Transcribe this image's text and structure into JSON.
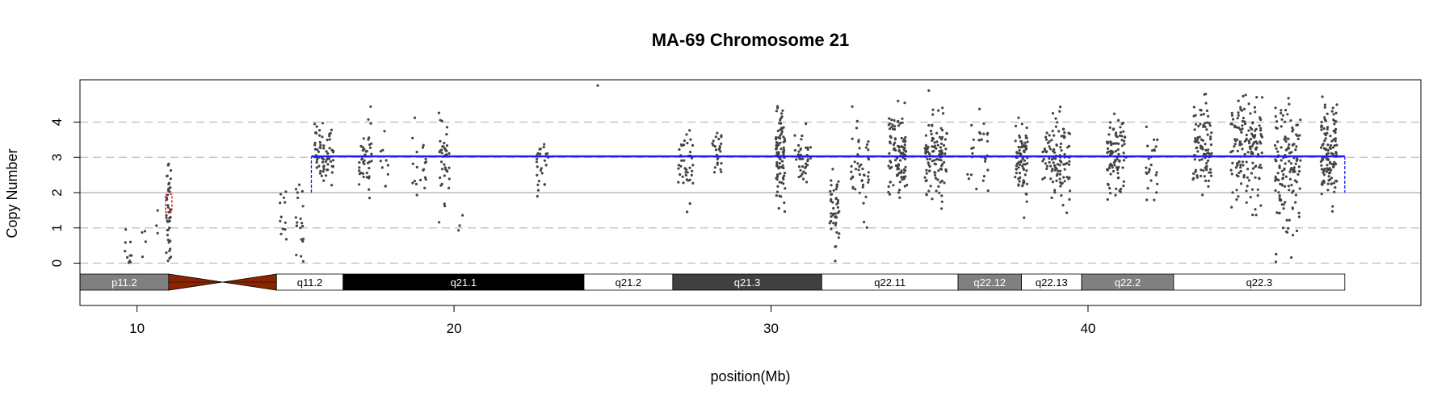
{
  "chart_data": {
    "type": "scatter",
    "title": "MA-69  Chromosome 21",
    "xlabel": "position(Mb)",
    "ylabel": "Copy Number",
    "xlim": [
      8.2,
      50.5
    ],
    "ylim": [
      -1.2,
      5.2
    ],
    "x_ticks": [
      10,
      20,
      30,
      40
    ],
    "y_ticks": [
      0,
      1,
      2,
      3,
      4
    ],
    "grid": {
      "dashed_y": [
        0,
        1,
        3,
        4
      ],
      "solid_y": [
        2
      ]
    },
    "colors": {
      "points": "#444444",
      "segment": "#1a1aff",
      "highlight": "#cc2222",
      "centromere": "#8b2500",
      "grid": "#bbbbbb"
    },
    "cytobands": [
      {
        "name": "p11.2",
        "start": 8.2,
        "end": 11.0,
        "stain": "gpos50"
      },
      {
        "name": "",
        "start": 11.0,
        "end": 14.4,
        "stain": "acen"
      },
      {
        "name": "q11.2",
        "start": 14.4,
        "end": 16.5,
        "stain": "gneg"
      },
      {
        "name": "q21.1",
        "start": 16.5,
        "end": 24.1,
        "stain": "gpos100"
      },
      {
        "name": "q21.2",
        "start": 24.1,
        "end": 26.9,
        "stain": "gneg"
      },
      {
        "name": "q21.3",
        "start": 26.9,
        "end": 31.6,
        "stain": "gpos75"
      },
      {
        "name": "q22.11",
        "start": 31.6,
        "end": 35.9,
        "stain": "gneg"
      },
      {
        "name": "q22.12",
        "start": 35.9,
        "end": 37.9,
        "stain": "gpos50"
      },
      {
        "name": "q22.13",
        "start": 37.9,
        "end": 39.8,
        "stain": "gneg"
      },
      {
        "name": "q22.2",
        "start": 39.8,
        "end": 42.7,
        "stain": "gpos50"
      },
      {
        "name": "q22.3",
        "start": 42.7,
        "end": 48.1,
        "stain": "gneg"
      }
    ],
    "segments": [
      {
        "start": 15.5,
        "end": 48.1,
        "value": 3.03
      }
    ],
    "segment_steps": [
      {
        "x": 15.5,
        "from": 2.0,
        "to": 3.03
      },
      {
        "x": 48.1,
        "from": 3.03,
        "to": 2.0
      }
    ],
    "highlight_segment": {
      "start": 10.9,
      "end": 11.1,
      "low": 1.45,
      "high": 1.95
    },
    "point_clusters": [
      {
        "x": 9.7,
        "width": 0.25,
        "mean": 0.4,
        "sd": 0.45,
        "n": 10
      },
      {
        "x": 10.2,
        "width": 0.15,
        "mean": 0.6,
        "sd": 0.3,
        "n": 4
      },
      {
        "x": 10.6,
        "width": 0.15,
        "mean": 1.3,
        "sd": 0.3,
        "n": 3
      },
      {
        "x": 11.0,
        "width": 0.15,
        "mean": 1.6,
        "sd": 0.8,
        "n": 40
      },
      {
        "x": 14.6,
        "width": 0.35,
        "mean": 1.3,
        "sd": 0.4,
        "n": 12
      },
      {
        "x": 15.1,
        "width": 0.3,
        "mean": 1.1,
        "sd": 0.6,
        "n": 20
      },
      {
        "x": 15.9,
        "width": 0.6,
        "mean": 3.1,
        "sd": 0.4,
        "n": 70
      },
      {
        "x": 17.2,
        "width": 0.4,
        "mean": 3.0,
        "sd": 0.5,
        "n": 40
      },
      {
        "x": 17.8,
        "width": 0.3,
        "mean": 2.8,
        "sd": 0.5,
        "n": 10
      },
      {
        "x": 18.9,
        "width": 0.5,
        "mean": 2.8,
        "sd": 0.5,
        "n": 20
      },
      {
        "x": 19.7,
        "width": 0.35,
        "mean": 2.9,
        "sd": 0.5,
        "n": 40
      },
      {
        "x": 20.2,
        "width": 0.2,
        "mean": 1.1,
        "sd": 0.2,
        "n": 3
      },
      {
        "x": 22.8,
        "width": 0.4,
        "mean": 2.7,
        "sd": 0.5,
        "n": 25
      },
      {
        "x": 24.5,
        "width": 0.1,
        "mean": 4.9,
        "sd": 0.05,
        "n": 1
      },
      {
        "x": 27.3,
        "width": 0.5,
        "mean": 2.9,
        "sd": 0.5,
        "n": 40
      },
      {
        "x": 28.3,
        "width": 0.3,
        "mean": 3.0,
        "sd": 0.4,
        "n": 25
      },
      {
        "x": 30.3,
        "width": 0.3,
        "mean": 3.0,
        "sd": 0.6,
        "n": 90
      },
      {
        "x": 31.0,
        "width": 0.5,
        "mean": 3.0,
        "sd": 0.5,
        "n": 40
      },
      {
        "x": 32.0,
        "width": 0.3,
        "mean": 1.4,
        "sd": 0.6,
        "n": 45
      },
      {
        "x": 32.8,
        "width": 0.6,
        "mean": 2.6,
        "sd": 0.6,
        "n": 45
      },
      {
        "x": 34.0,
        "width": 0.6,
        "mean": 3.1,
        "sd": 0.6,
        "n": 100
      },
      {
        "x": 35.2,
        "width": 0.7,
        "mean": 3.0,
        "sd": 0.6,
        "n": 110
      },
      {
        "x": 36.5,
        "width": 0.7,
        "mean": 3.1,
        "sd": 0.5,
        "n": 30
      },
      {
        "x": 37.9,
        "width": 0.4,
        "mean": 3.0,
        "sd": 0.6,
        "n": 80
      },
      {
        "x": 39.0,
        "width": 0.9,
        "mean": 3.0,
        "sd": 0.6,
        "n": 110
      },
      {
        "x": 40.9,
        "width": 0.6,
        "mean": 2.9,
        "sd": 0.6,
        "n": 90
      },
      {
        "x": 42.0,
        "width": 0.4,
        "mean": 2.8,
        "sd": 0.5,
        "n": 25
      },
      {
        "x": 43.6,
        "width": 0.6,
        "mean": 3.2,
        "sd": 0.7,
        "n": 90
      },
      {
        "x": 45.0,
        "width": 1.0,
        "mean": 3.2,
        "sd": 0.7,
        "n": 150
      },
      {
        "x": 46.3,
        "width": 0.8,
        "mean": 2.8,
        "sd": 0.9,
        "n": 140
      },
      {
        "x": 47.6,
        "width": 0.5,
        "mean": 3.1,
        "sd": 0.7,
        "n": 120
      }
    ]
  }
}
